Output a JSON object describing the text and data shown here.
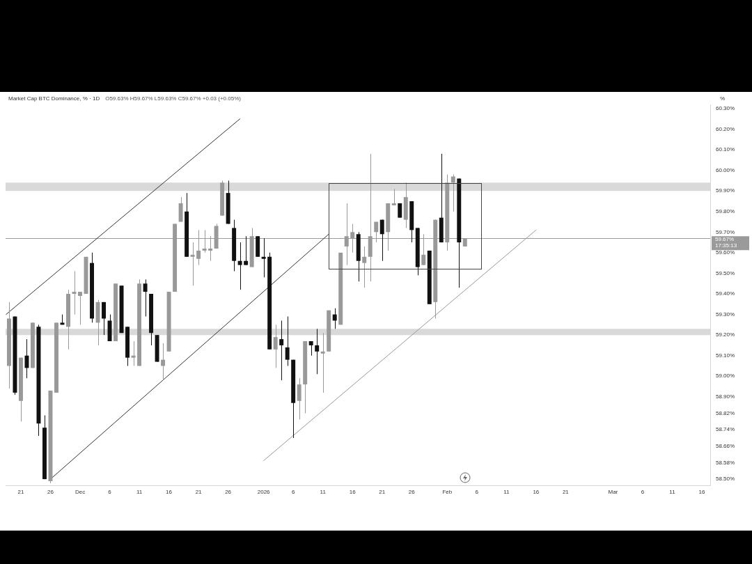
{
  "chart_data": {
    "type": "candlestick",
    "title": "Market Cap BTC Dominance, % · 1D",
    "subtitle": "O59.63% H59.67% L59.63% C59.67% +0.03 (+0.05%)",
    "ylabel": "%",
    "annotations": [
      "17:35:13"
    ],
    "x": [
      "2025-11-19",
      "2025-11-20",
      "2025-11-21",
      "2025-11-22",
      "2025-11-23",
      "2025-11-24",
      "2025-11-25",
      "2025-11-26",
      "2025-11-27",
      "2025-11-28",
      "2025-11-29",
      "2025-11-30",
      "2025-12-01",
      "2025-12-02",
      "2025-12-03",
      "2025-12-04",
      "2025-12-05",
      "2025-12-06",
      "2025-12-07",
      "2025-12-08",
      "2025-12-09",
      "2025-12-10",
      "2025-12-11",
      "2025-12-12",
      "2025-12-13",
      "2025-12-14",
      "2025-12-15",
      "2025-12-16",
      "2025-12-17",
      "2025-12-18",
      "2025-12-19",
      "2025-12-20",
      "2025-12-21",
      "2025-12-22",
      "2025-12-23",
      "2025-12-24",
      "2025-12-25",
      "2025-12-26",
      "2025-12-27",
      "2025-12-28",
      "2025-12-29",
      "2025-12-30",
      "2025-12-31",
      "2026-01-01",
      "2026-01-02",
      "2026-01-03",
      "2026-01-04",
      "2026-01-05",
      "2026-01-06",
      "2026-01-07",
      "2026-01-08",
      "2026-01-09",
      "2026-01-10",
      "2026-01-11",
      "2026-01-12",
      "2026-01-13",
      "2026-01-14",
      "2026-01-15",
      "2026-01-16",
      "2026-01-17",
      "2026-01-18",
      "2026-01-19",
      "2026-01-20",
      "2026-01-21",
      "2026-01-22",
      "2026-01-23",
      "2026-01-24",
      "2026-01-25",
      "2026-01-26",
      "2026-01-27",
      "2026-01-28",
      "2026-01-29",
      "2026-01-30",
      "2026-01-31",
      "2026-02-01",
      "2026-02-02",
      "2026-02-03",
      "2026-02-04"
    ],
    "ohlc": [
      [
        59.05,
        59.36,
        58.94,
        59.28
      ],
      [
        59.29,
        59.29,
        58.91,
        58.92
      ],
      [
        58.88,
        59.09,
        58.78,
        59.09
      ],
      [
        59.1,
        59.18,
        58.99,
        59.04
      ],
      [
        59.04,
        59.26,
        59.04,
        59.26
      ],
      [
        59.24,
        59.25,
        58.71,
        58.77
      ],
      [
        58.75,
        58.81,
        58.5,
        58.5
      ],
      [
        58.49,
        58.93,
        58.48,
        58.93
      ],
      [
        58.92,
        59.26,
        58.92,
        59.26
      ],
      [
        59.26,
        59.3,
        59.25,
        59.25
      ],
      [
        59.24,
        59.42,
        59.13,
        59.4
      ],
      [
        59.4,
        59.51,
        59.3,
        59.41
      ],
      [
        59.39,
        59.41,
        59.25,
        59.41
      ],
      [
        59.4,
        59.58,
        59.4,
        59.58
      ],
      [
        59.55,
        59.6,
        59.26,
        59.28
      ],
      [
        59.26,
        59.37,
        59.15,
        59.36
      ],
      [
        59.36,
        59.36,
        59.2,
        59.28
      ],
      [
        59.27,
        59.3,
        59.17,
        59.17
      ],
      [
        59.17,
        59.45,
        59.17,
        59.45
      ],
      [
        59.44,
        59.44,
        59.21,
        59.21
      ],
      [
        59.24,
        59.24,
        59.05,
        59.09
      ],
      [
        59.09,
        59.17,
        59.05,
        59.1
      ],
      [
        59.05,
        59.47,
        59.05,
        59.45
      ],
      [
        59.45,
        59.47,
        59.29,
        59.41
      ],
      [
        59.4,
        59.4,
        59.15,
        59.21
      ],
      [
        59.2,
        59.2,
        59.07,
        59.07
      ],
      [
        59.05,
        59.16,
        58.98,
        59.08
      ],
      [
        59.12,
        59.41,
        59.12,
        59.41
      ],
      [
        59.41,
        59.74,
        59.41,
        59.74
      ],
      [
        59.75,
        59.87,
        59.75,
        59.84
      ],
      [
        59.8,
        59.89,
        59.58,
        59.58
      ],
      [
        59.58,
        59.65,
        59.44,
        59.59
      ],
      [
        59.57,
        59.71,
        59.54,
        59.61
      ],
      [
        59.61,
        59.71,
        59.6,
        59.62
      ],
      [
        59.61,
        59.68,
        59.56,
        59.62
      ],
      [
        59.62,
        59.74,
        59.62,
        59.73
      ],
      [
        59.78,
        59.95,
        59.78,
        59.94
      ],
      [
        59.89,
        59.95,
        59.74,
        59.74
      ],
      [
        59.72,
        59.76,
        59.51,
        59.56
      ],
      [
        59.56,
        59.65,
        59.42,
        59.54
      ],
      [
        59.56,
        59.68,
        59.54,
        59.54
      ],
      [
        59.53,
        59.72,
        59.53,
        59.68
      ],
      [
        59.68,
        59.68,
        59.58,
        59.58
      ],
      [
        59.58,
        59.67,
        59.48,
        59.57
      ],
      [
        59.58,
        59.6,
        59.13,
        59.13
      ],
      [
        59.13,
        59.25,
        59.04,
        59.19
      ],
      [
        59.18,
        59.27,
        58.98,
        59.15
      ],
      [
        59.14,
        59.29,
        59.05,
        59.08
      ],
      [
        59.08,
        59.08,
        58.7,
        58.87
      ],
      [
        58.88,
        58.99,
        58.79,
        58.96
      ],
      [
        58.96,
        59.17,
        58.82,
        59.17
      ],
      [
        59.17,
        59.17,
        59.1,
        59.15
      ],
      [
        59.15,
        59.23,
        59.01,
        59.12
      ],
      [
        59.11,
        59.21,
        58.92,
        59.12
      ],
      [
        59.12,
        59.32,
        59.12,
        59.32
      ],
      [
        59.3,
        59.33,
        59.23,
        59.27
      ],
      [
        59.25,
        59.6,
        59.25,
        59.6
      ],
      [
        59.63,
        59.84,
        59.54,
        59.68
      ],
      [
        59.67,
        59.74,
        59.6,
        59.7
      ],
      [
        59.69,
        59.7,
        59.46,
        59.56
      ],
      [
        59.55,
        59.63,
        59.43,
        59.58
      ],
      [
        59.58,
        60.08,
        59.46,
        59.68
      ],
      [
        59.7,
        59.75,
        59.65,
        59.75
      ],
      [
        59.76,
        59.76,
        59.56,
        59.69
      ],
      [
        59.7,
        59.84,
        59.61,
        59.84
      ],
      [
        59.83,
        59.91,
        59.83,
        59.84
      ],
      [
        59.84,
        59.84,
        59.77,
        59.77
      ],
      [
        59.76,
        59.94,
        59.72,
        59.87
      ],
      [
        59.85,
        59.85,
        59.65,
        59.71
      ],
      [
        59.72,
        59.72,
        59.49,
        59.53
      ],
      [
        59.54,
        59.69,
        59.54,
        59.59
      ],
      [
        59.61,
        59.61,
        59.35,
        59.35
      ],
      [
        59.36,
        59.76,
        59.28,
        59.76
      ],
      [
        59.77,
        60.08,
        59.65,
        59.65
      ],
      [
        59.65,
        59.98,
        59.61,
        59.94
      ],
      [
        59.94,
        59.98,
        59.8,
        59.97
      ],
      [
        59.96,
        59.96,
        59.43,
        59.65
      ],
      [
        59.63,
        59.67,
        59.63,
        59.67
      ]
    ],
    "colors": [
      "#999999",
      "#111111",
      "#999999",
      "#111111",
      "#999999",
      "#111111",
      "#111111",
      "#999999",
      "#999999",
      "#111111",
      "#999999",
      "#999999",
      "#999999",
      "#999999",
      "#111111",
      "#999999",
      "#111111",
      "#111111",
      "#999999",
      "#111111",
      "#111111",
      "#999999",
      "#999999",
      "#111111",
      "#111111",
      "#111111",
      "#999999",
      "#999999",
      "#999999",
      "#999999",
      "#111111",
      "#999999",
      "#999999",
      "#999999",
      "#999999",
      "#999999",
      "#999999",
      "#111111",
      "#111111",
      "#111111",
      "#111111",
      "#999999",
      "#111111",
      "#111111",
      "#111111",
      "#999999",
      "#111111",
      "#111111",
      "#111111",
      "#999999",
      "#999999",
      "#111111",
      "#111111",
      "#999999",
      "#999999",
      "#111111",
      "#999999",
      "#999999",
      "#999999",
      "#111111",
      "#999999",
      "#999999",
      "#999999",
      "#111111",
      "#999999",
      "#999999",
      "#111111",
      "#999999",
      "#111111",
      "#111111",
      "#999999",
      "#111111",
      "#999999",
      "#111111",
      "#999999",
      "#999999",
      "#111111",
      "#999999"
    ],
    "series": [
      {
        "type": "line",
        "x": [
          "2025-11-18T12:00",
          "2025-12-28"
        ],
        "values": [
          59.3,
          60.25
        ],
        "color": "#333333"
      },
      {
        "type": "line",
        "x": [
          "2025-11-26",
          "2026-01-12"
        ],
        "values": [
          58.5,
          59.69
        ],
        "color": "#333333"
      },
      {
        "type": "line",
        "x": [
          "2026-01-01",
          "2026-02-16"
        ],
        "values": [
          58.59,
          59.71
        ],
        "color": "#999999"
      }
    ],
    "xlim": [
      "2025-11-18T10:00",
      "2026-03-17T10:00"
    ],
    "xticks": [
      {
        "value": "2025-11-21",
        "label": "21"
      },
      {
        "value": "2025-11-26",
        "label": "26"
      },
      {
        "value": "2025-12-01",
        "label": "Dec"
      },
      {
        "value": "2025-12-06",
        "label": "6"
      },
      {
        "value": "2025-12-11",
        "label": "11"
      },
      {
        "value": "2025-12-16",
        "label": "16"
      },
      {
        "value": "2025-12-21",
        "label": "21"
      },
      {
        "value": "2025-12-26",
        "label": "26"
      },
      {
        "value": "2026-01-01",
        "label": "2026"
      },
      {
        "value": "2026-01-06",
        "label": "6"
      },
      {
        "value": "2026-01-11",
        "label": "11"
      },
      {
        "value": "2026-01-16",
        "label": "16"
      },
      {
        "value": "2026-01-21",
        "label": "21"
      },
      {
        "value": "2026-01-26",
        "label": "26"
      },
      {
        "value": "2026-02-01",
        "label": "Feb"
      },
      {
        "value": "2026-02-06",
        "label": "6"
      },
      {
        "value": "2026-02-11",
        "label": "11"
      },
      {
        "value": "2026-02-16",
        "label": "16"
      },
      {
        "value": "2026-02-21",
        "label": "21"
      },
      {
        "value": "2026-03-01",
        "label": "Mar"
      },
      {
        "value": "2026-03-06",
        "label": "6"
      },
      {
        "value": "2026-03-11",
        "label": "11"
      },
      {
        "value": "2026-03-16",
        "label": "16"
      }
    ],
    "ylim": [
      58.47,
      60.32
    ],
    "yticks": [
      {
        "value": 58.5,
        "label": "58.50%"
      },
      {
        "value": 58.58,
        "label": "58.58%"
      },
      {
        "value": 58.66,
        "label": "58.66%"
      },
      {
        "value": 58.74,
        "label": "58.74%"
      },
      {
        "value": 58.82,
        "label": "58.82%"
      },
      {
        "value": 58.9,
        "label": "58.90%"
      },
      {
        "value": 59.0,
        "label": "59.00%"
      },
      {
        "value": 59.1,
        "label": "59.10%"
      },
      {
        "value": 59.2,
        "label": "59.20%"
      },
      {
        "value": 59.3,
        "label": "59.30%"
      },
      {
        "value": 59.4,
        "label": "59.40%"
      },
      {
        "value": 59.5,
        "label": "59.50%"
      },
      {
        "value": 59.6,
        "label": "59.60%"
      },
      {
        "value": 59.7,
        "label": "59.70%"
      },
      {
        "value": 59.8,
        "label": "59.80%"
      },
      {
        "value": 59.9,
        "label": "59.90%"
      },
      {
        "value": 60.0,
        "label": "60.00%"
      },
      {
        "value": 60.1,
        "label": "60.10%"
      },
      {
        "value": 60.2,
        "label": "60.20%"
      },
      {
        "value": 60.3,
        "label": "60.30%"
      }
    ],
    "bands": [
      {
        "axis": "y",
        "from": 59.9,
        "to": 59.94,
        "color": "#d9d9d9"
      },
      {
        "axis": "y",
        "from": 59.2,
        "to": 59.23,
        "color": "#d9d9d9"
      }
    ],
    "ref_lines": [
      {
        "axis": "y",
        "value": 59.67,
        "label": "59.67%",
        "color": "#9a9a9a"
      }
    ],
    "grid": false,
    "legend": false
  }
}
